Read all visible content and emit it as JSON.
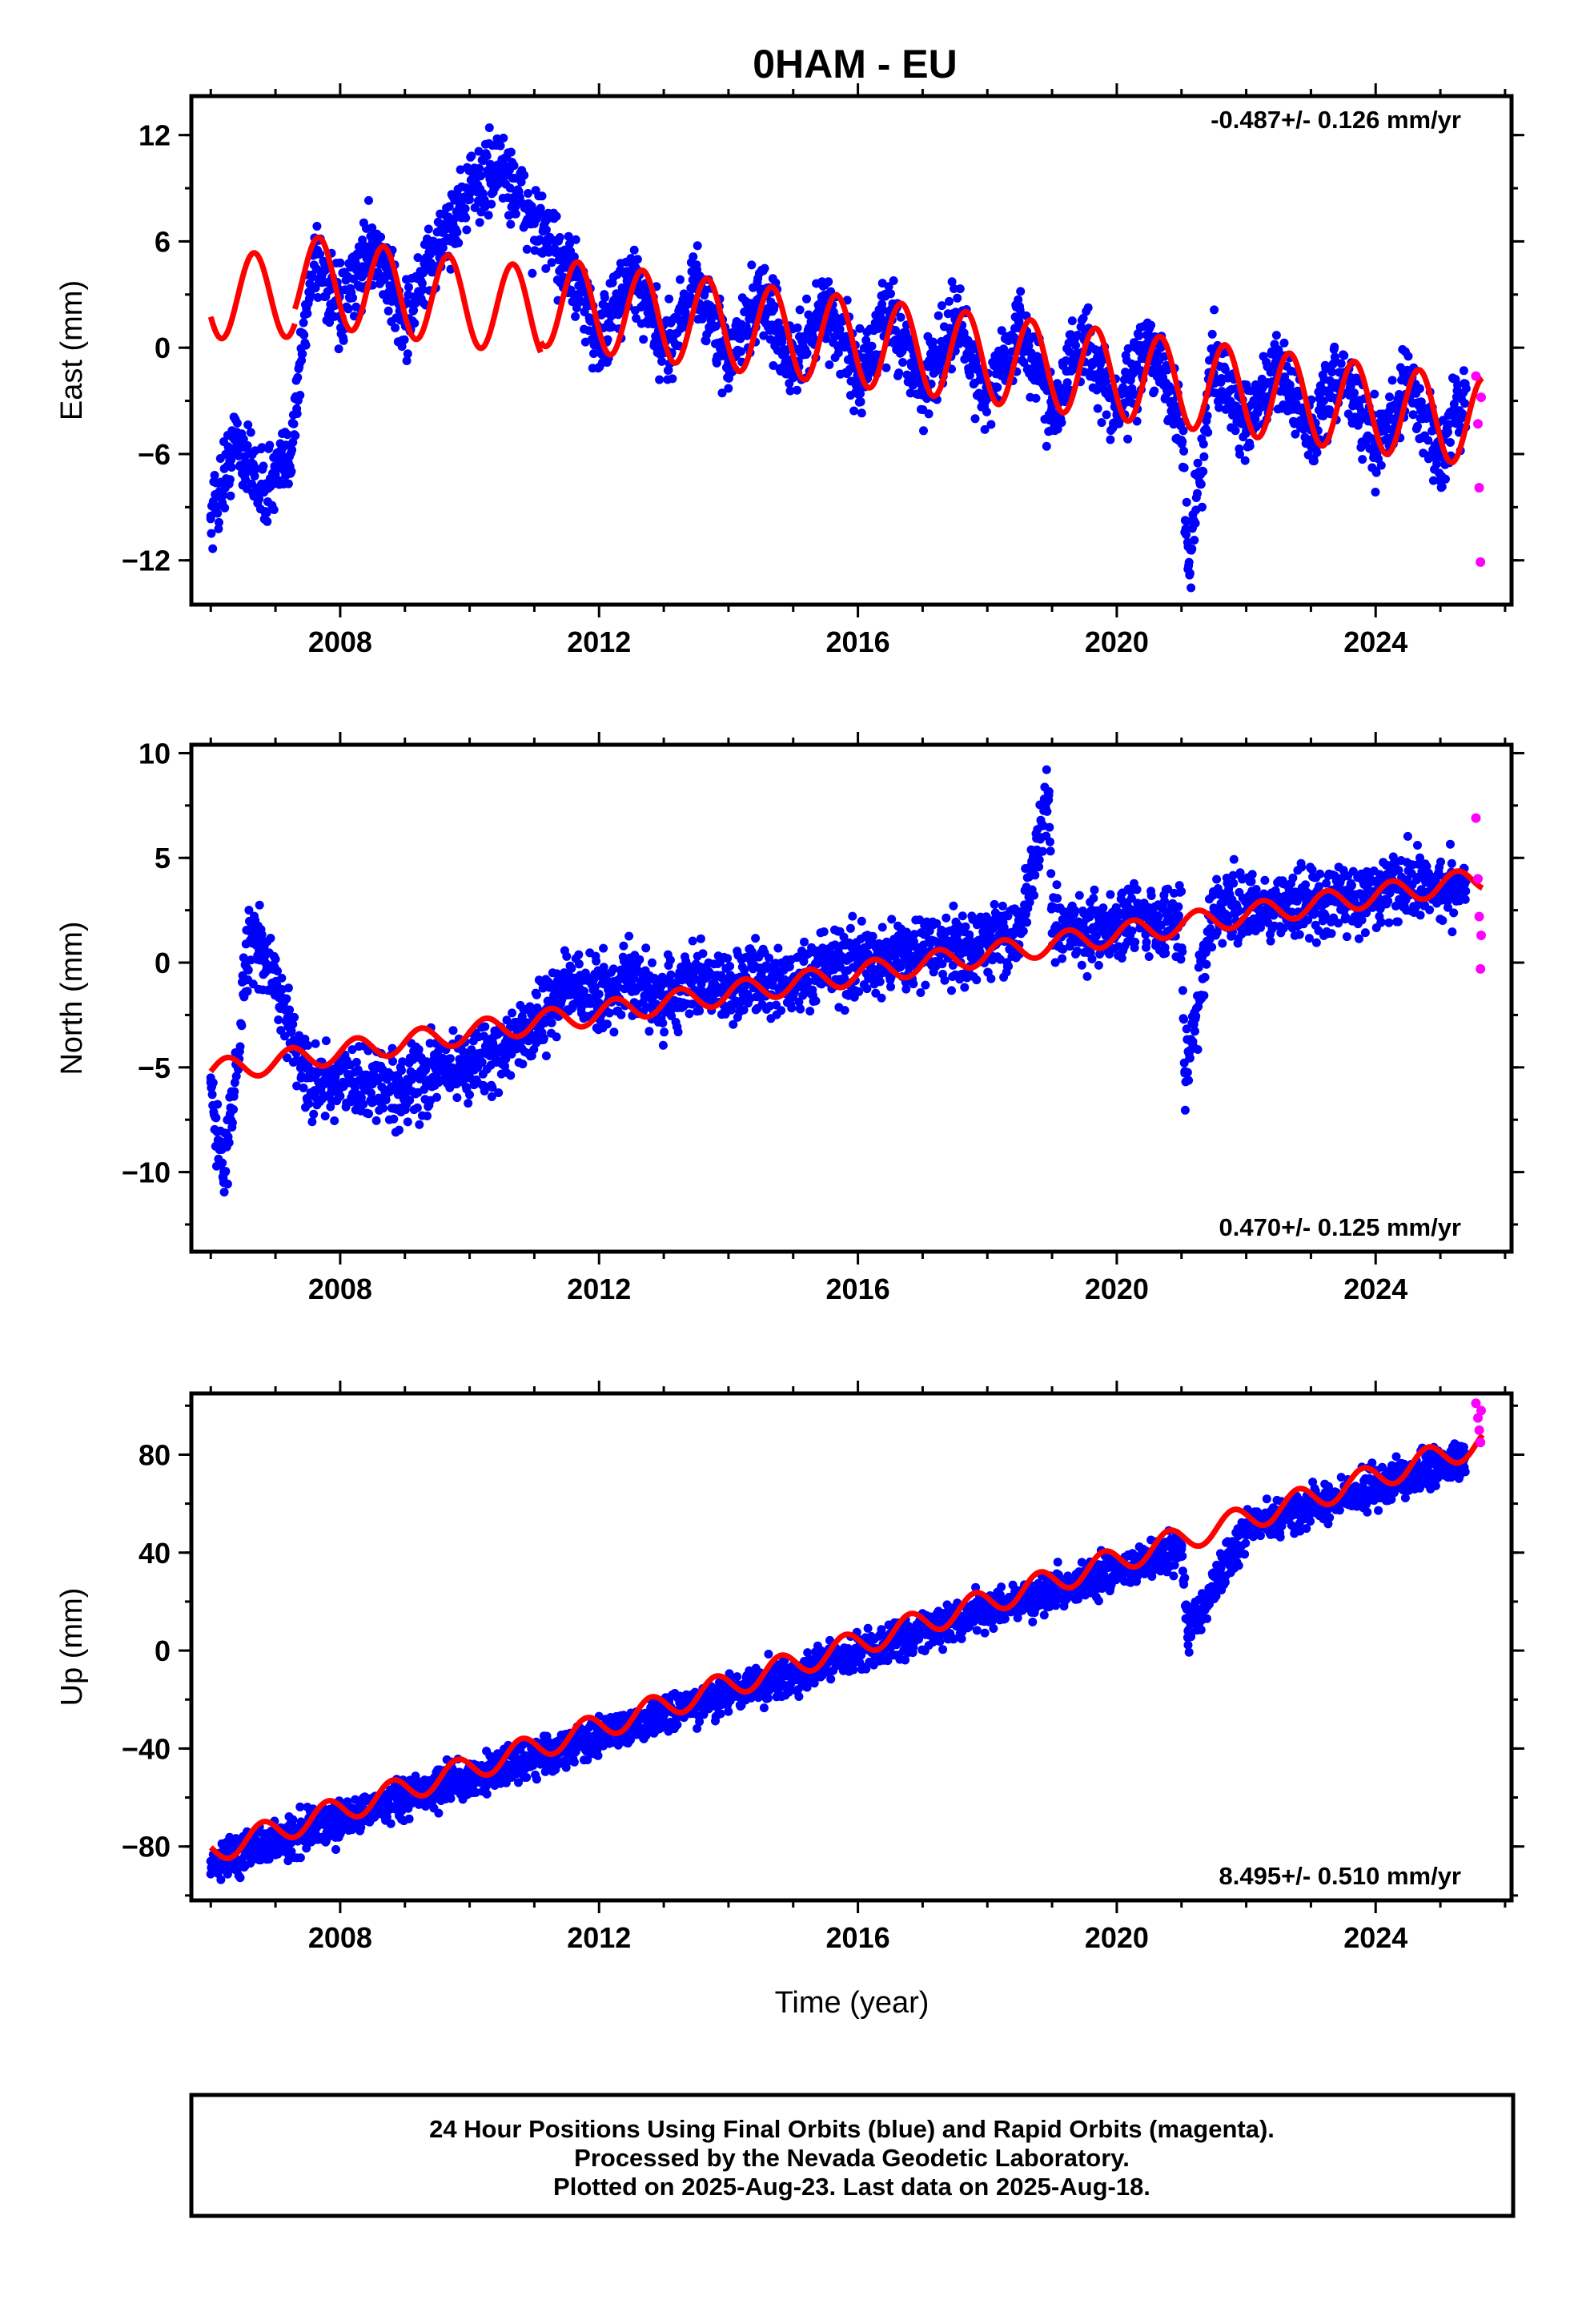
{
  "chart_data": {
    "type": "scatter",
    "title": "0HAM - EU",
    "xlabel": "Time (year)",
    "xlim": [
      2005.7,
      2026.1
    ],
    "x_ticks": [
      2008,
      2012,
      2016,
      2020,
      2024
    ],
    "colors": {
      "final": "#0000ff",
      "rapid": "#ff00ff",
      "model": "#ff0000"
    },
    "panels": [
      {
        "id": "east",
        "ylabel": "East (mm)",
        "ylim": [
          -14.5,
          14.2
        ],
        "y_ticks": [
          -12,
          -6,
          0,
          6,
          12
        ],
        "rate_label": "-0.487+/- 0.126 mm/yr",
        "rate_pos": "top-right",
        "series": {
          "final_orbits": {
            "points": [
              [
                2006.0,
                -9.5
              ],
              [
                2006.4,
                -5.2
              ],
              [
                2006.8,
                -8.0
              ],
              [
                2007.2,
                -6.5
              ],
              [
                2007.6,
                5.5
              ],
              [
                2008.0,
                1.8
              ],
              [
                2008.5,
                6.0
              ],
              [
                2009.0,
                1.4
              ],
              [
                2009.5,
                5.6
              ],
              [
                2010.0,
                8.9
              ],
              [
                2010.5,
                10.2
              ],
              [
                2011.0,
                7.0
              ],
              [
                2011.5,
                4.8
              ],
              [
                2012.0,
                0.3
              ],
              [
                2012.5,
                4.2
              ],
              [
                2013.0,
                -0.3
              ],
              [
                2013.5,
                3.8
              ],
              [
                2014.0,
                -0.8
              ],
              [
                2014.5,
                3.2
              ],
              [
                2015.0,
                -1.3
              ],
              [
                2015.5,
                2.7
              ],
              [
                2016.0,
                -1.8
              ],
              [
                2016.5,
                2.1
              ],
              [
                2017.0,
                -2.3
              ],
              [
                2017.5,
                1.6
              ],
              [
                2018.0,
                -2.8
              ],
              [
                2018.5,
                1.1
              ],
              [
                2019.0,
                -3.3
              ],
              [
                2019.5,
                0.6
              ],
              [
                2020.0,
                -3.8
              ],
              [
                2020.5,
                0.1
              ],
              [
                2021.0,
                -4.2
              ],
              [
                2021.1,
                -12.5
              ],
              [
                2021.5,
                -0.4
              ],
              [
                2022.0,
                -4.7
              ],
              [
                2022.5,
                -0.9
              ],
              [
                2023.0,
                -5.2
              ],
              [
                2023.5,
                -1.4
              ],
              [
                2024.0,
                -5.7
              ],
              [
                2024.5,
                -1.9
              ],
              [
                2025.0,
                -6.1
              ],
              [
                2025.4,
                -2.3
              ]
            ],
            "spread": 1.9
          },
          "rapid_orbits": {
            "points": [
              [
                2025.55,
                -1.6
              ],
              [
                2025.58,
                -4.3
              ],
              [
                2025.6,
                -7.9
              ],
              [
                2025.62,
                -12.1
              ],
              [
                2025.63,
                -2.8
              ]
            ]
          },
          "model_curve": {
            "segments": [
              {
                "start": 2006.0,
                "end": 2007.3,
                "trend_start": 2.9,
                "trend_end": 3.0,
                "amp": 2.4,
                "phase": 0.42
              },
              {
                "start": 2007.3,
                "end": 2011.1,
                "trend_start": 3.9,
                "trend_end": 2.0,
                "amp": 2.5,
                "phase": 0.42
              },
              {
                "start": 2011.1,
                "end": 2025.65,
                "trend_start": 2.6,
                "trend_end": -4.2,
                "amp": 2.5,
                "phase": 0.42
              }
            ]
          }
        }
      },
      {
        "id": "north",
        "ylabel": "North (mm)",
        "ylim": [
          -13.8,
          10.4
        ],
        "y_ticks": [
          -10,
          -5,
          0,
          5,
          10
        ],
        "rate_label": "0.470+/- 0.125 mm/yr",
        "rate_pos": "bottom-right",
        "series": {
          "final_orbits": {
            "points": [
              [
                2006.0,
                -5.5
              ],
              [
                2006.2,
                -10.5
              ],
              [
                2006.6,
                1.5
              ],
              [
                2007.0,
                -1.0
              ],
              [
                2007.5,
                -5.5
              ],
              [
                2008.0,
                -6.0
              ],
              [
                2008.5,
                -5.8
              ],
              [
                2009.0,
                -6.0
              ],
              [
                2009.5,
                -5.2
              ],
              [
                2010.0,
                -4.8
              ],
              [
                2010.5,
                -4.2
              ],
              [
                2011.0,
                -2.8
              ],
              [
                2011.5,
                -1.2
              ],
              [
                2012.0,
                -1.5
              ],
              [
                2012.5,
                -1.0
              ],
              [
                2013.0,
                -2.0
              ],
              [
                2013.5,
                -0.8
              ],
              [
                2014.0,
                -1.2
              ],
              [
                2014.5,
                -0.6
              ],
              [
                2015.0,
                -0.9
              ],
              [
                2015.5,
                -0.2
              ],
              [
                2016.0,
                0.0
              ],
              [
                2016.5,
                0.6
              ],
              [
                2017.0,
                0.4
              ],
              [
                2017.5,
                0.7
              ],
              [
                2018.0,
                1.0
              ],
              [
                2018.5,
                1.5
              ],
              [
                2018.95,
                8.0
              ],
              [
                2019.0,
                1.4
              ],
              [
                2019.5,
                1.6
              ],
              [
                2020.0,
                1.9
              ],
              [
                2020.5,
                2.0
              ],
              [
                2021.0,
                1.9
              ],
              [
                2021.05,
                -5.2
              ],
              [
                2021.5,
                2.6
              ],
              [
                2022.0,
                2.5
              ],
              [
                2022.5,
                2.7
              ],
              [
                2023.0,
                2.9
              ],
              [
                2023.5,
                3.1
              ],
              [
                2024.0,
                3.2
              ],
              [
                2024.5,
                3.5
              ],
              [
                2025.0,
                3.6
              ],
              [
                2025.4,
                3.9
              ]
            ],
            "spread": 1.5
          },
          "rapid_orbits": {
            "points": [
              [
                2025.55,
                6.9
              ],
              [
                2025.58,
                4.0
              ],
              [
                2025.6,
                2.2
              ],
              [
                2025.62,
                -0.3
              ],
              [
                2025.63,
                1.3
              ]
            ]
          },
          "model_curve": {
            "segments": [
              {
                "start": 2006.0,
                "end": 2025.65,
                "trend_start": -5.2,
                "trend_end": 4.0,
                "amp": 0.55,
                "phase": 0.0
              }
            ]
          }
        }
      },
      {
        "id": "up",
        "ylabel": "Up (mm)",
        "ylim": [
          -102,
          105
        ],
        "y_ticks": [
          -80,
          -40,
          0,
          40,
          80
        ],
        "rate_label": "8.495+/- 0.510 mm/yr",
        "rate_pos": "bottom-right",
        "series": {
          "final_orbits": {
            "points": [
              [
                2006.0,
                -86.0
              ],
              [
                2007.0,
                -77.5
              ],
              [
                2008.0,
                -69.0
              ],
              [
                2009.0,
                -60.5
              ],
              [
                2010.0,
                -52.0
              ],
              [
                2011.0,
                -43.5
              ],
              [
                2012.0,
                -35.0
              ],
              [
                2013.0,
                -26.5
              ],
              [
                2014.0,
                -18.0
              ],
              [
                2015.0,
                -9.5
              ],
              [
                2016.0,
                -1.0
              ],
              [
                2017.0,
                7.5
              ],
              [
                2018.0,
                16.0
              ],
              [
                2019.0,
                24.5
              ],
              [
                2020.0,
                33.0
              ],
              [
                2021.0,
                41.5
              ],
              [
                2021.1,
                8.0
              ],
              [
                2022.0,
                50.0
              ],
              [
                2023.0,
                58.5
              ],
              [
                2024.0,
                67.0
              ],
              [
                2025.0,
                75.5
              ],
              [
                2025.4,
                80.0
              ]
            ],
            "spread": 7.0
          },
          "rapid_orbits": {
            "points": [
              [
                2025.55,
                101.0
              ],
              [
                2025.58,
                95.0
              ],
              [
                2025.6,
                90.0
              ],
              [
                2025.62,
                85.0
              ],
              [
                2025.63,
                98.0
              ]
            ]
          },
          "model_curve": {
            "segments": [
              {
                "start": 2006.0,
                "end": 2025.65,
                "trend_start": -82.0,
                "trend_end": 85.0,
                "amp": 5.2,
                "phase": 0.55
              }
            ]
          }
        }
      }
    ]
  },
  "footer": {
    "line1": "24 Hour Positions Using Final Orbits (blue) and Rapid Orbits (magenta).",
    "line2": "Processed by the Nevada Geodetic Laboratory.",
    "line3": "Plotted on 2025-Aug-23. Last data on 2025-Aug-18."
  }
}
